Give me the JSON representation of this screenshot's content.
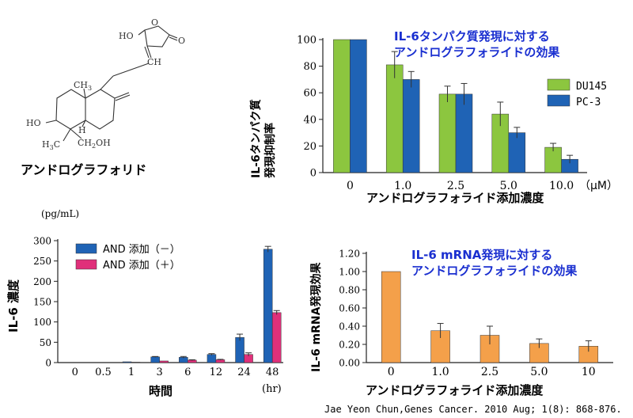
{
  "molecule": {
    "name": "アンドログラフォリド",
    "atoms": {
      "ho_top": "HO",
      "o_ring": "O",
      "o_keto": "O",
      "ch": "CH",
      "ch3_a": "CH",
      "ch3_a_sub": "3",
      "ho_left": "HO",
      "h": "H",
      "ch3_b": "H",
      "ch3_b_pre": "C",
      "ch3_b_sub": "3",
      "ch2oh": "CH",
      "ch2oh_sub": "2",
      "ch2oh_end": "OH"
    }
  },
  "citation": "Jae Yeon Chun,Genes Cancer. 2010 Aug; 1(8): 868-876.",
  "chart_data": [
    {
      "type": "bar",
      "title": [
        "IL-6タンパク質発現に対する",
        "アンドログラフォライドの効果"
      ],
      "title_color": "#1a2fd0",
      "ylabel": [
        "IL-6タンパク質",
        "発現抑制率"
      ],
      "xlabel": "アンドログラフォライド添加濃度",
      "unit": "（μM）",
      "categories": [
        "0",
        "1.0",
        "2.5",
        "5.0",
        "10.0"
      ],
      "ylim": [
        0,
        100
      ],
      "yticks": [
        0,
        20,
        40,
        60,
        80,
        100
      ],
      "grid": false,
      "legend_position": "right",
      "series": [
        {
          "name": "DU145",
          "color": "#8cc63f",
          "values": [
            100,
            81,
            59,
            44,
            19
          ],
          "errors": [
            0,
            10,
            6,
            9,
            3
          ]
        },
        {
          "name": "PC-3",
          "color": "#1f63b5",
          "values": [
            100,
            70,
            59,
            30,
            10
          ],
          "errors": [
            0,
            6,
            8,
            4,
            3
          ]
        }
      ]
    },
    {
      "type": "bar",
      "unit_top": "(pg/mL)",
      "ylabel": "IL-6 濃度",
      "xlabel": "時間",
      "unit": "(hr)",
      "categories": [
        "0",
        "0.5",
        "1",
        "3",
        "6",
        "12",
        "24",
        "48"
      ],
      "ylim": [
        0,
        300
      ],
      "yticks": [
        0,
        50,
        100,
        150,
        200,
        250,
        300
      ],
      "grid": false,
      "legend_position": "top-left",
      "series": [
        {
          "name": "AND 添加（－）",
          "color": "#1f63b5",
          "values": [
            0,
            0,
            2,
            14,
            13,
            20,
            62,
            279
          ],
          "errors": [
            0,
            0,
            0,
            1,
            2,
            2,
            8,
            7
          ]
        },
        {
          "name": "AND 添加（＋）",
          "color": "#e0307a",
          "values": [
            0,
            0,
            1,
            4,
            6,
            7,
            20,
            123
          ],
          "errors": [
            0,
            0,
            0,
            0,
            1,
            1,
            4,
            5
          ]
        }
      ]
    },
    {
      "type": "bar",
      "title": [
        "IL-6 mRNA発現に対する",
        "アンドログラフォライドの効果"
      ],
      "title_color": "#1a2fd0",
      "ylabel": "IL-6 mRNA発現効果",
      "xlabel": "アンドログラフォライド添加濃度",
      "categories": [
        "0",
        "1.0",
        "2.5",
        "5.0",
        "10"
      ],
      "ylim": [
        0,
        1.2
      ],
      "yticks": [
        "0.00",
        "0.20",
        "0.40",
        "0.60",
        "0.80",
        "1.00",
        "1.20"
      ],
      "grid": false,
      "series": [
        {
          "color": "#f4a04a",
          "values": [
            1.0,
            0.35,
            0.3,
            0.21,
            0.18
          ],
          "errors": [
            0,
            0.08,
            0.1,
            0.05,
            0.06
          ]
        }
      ]
    }
  ]
}
